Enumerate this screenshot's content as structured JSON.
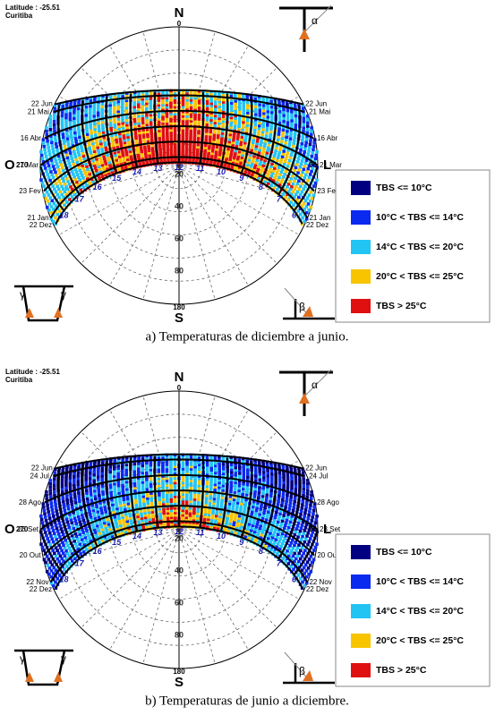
{
  "panels": [
    {
      "latitude": "Latitude : -25.51",
      "city": "Curitiba",
      "north": "N",
      "north_angle": "0",
      "south": "S",
      "south_angle": "180",
      "west": "O",
      "west_angle": "270",
      "east": "L",
      "east_angle": "90",
      "left_dates": [
        "22 Jun",
        "21 Mai",
        "16 Abr",
        "21 Mar",
        "23 Fev",
        "21 Jan",
        "22 Dez"
      ],
      "right_dates": [
        "22 Jun",
        "21 Mai",
        "16 Abr",
        "21 Mar",
        "23 Fev",
        "21 Jan",
        "22 Dez"
      ],
      "altitudes": [
        "20",
        "40",
        "60",
        "80"
      ],
      "hours": [
        "18",
        "17",
        "16",
        "15",
        "14",
        "13",
        "12",
        "11",
        "10",
        "9",
        "8",
        "7",
        "6"
      ],
      "legend": [
        "TBS <= 10°C",
        "10°C < TBS <= 14°C",
        "14°C < TBS <= 20°C",
        "20°C < TBS <= 25°C",
        "TBS > 25°C"
      ],
      "alpha": "α",
      "beta": "β",
      "gamma": "γ",
      "caption": "a) Temperaturas de diciembre a junio."
    },
    {
      "latitude": "Latitude : -25.51",
      "city": "Curitiba",
      "north": "N",
      "north_angle": "0",
      "south": "S",
      "south_angle": "180",
      "west": "O",
      "west_angle": "270",
      "east": "L",
      "east_angle": "90",
      "left_dates": [
        "22 Jun",
        "24 Jul",
        "28 Ago",
        "23 Set",
        "20 Out",
        "22 Nov",
        "22 Dez"
      ],
      "right_dates": [
        "22 Jun",
        "24 Jul",
        "28 Ago",
        "23 Set",
        "20 Out",
        "22 Nov",
        "22 Dez"
      ],
      "altitudes": [
        "20",
        "40",
        "60",
        "80"
      ],
      "hours": [
        "18",
        "17",
        "16",
        "15",
        "14",
        "13",
        "12",
        "11",
        "10",
        "9",
        "8",
        "7",
        "6"
      ],
      "legend": [
        "TBS <= 10°C",
        "10°C < TBS <= 14°C",
        "14°C < TBS <= 20°C",
        "20°C < TBS <= 25°C",
        "TBS > 25°C"
      ],
      "alpha": "α",
      "beta": "β",
      "gamma": "γ",
      "caption": "b) Temperaturas de junio a diciembre."
    }
  ]
}
